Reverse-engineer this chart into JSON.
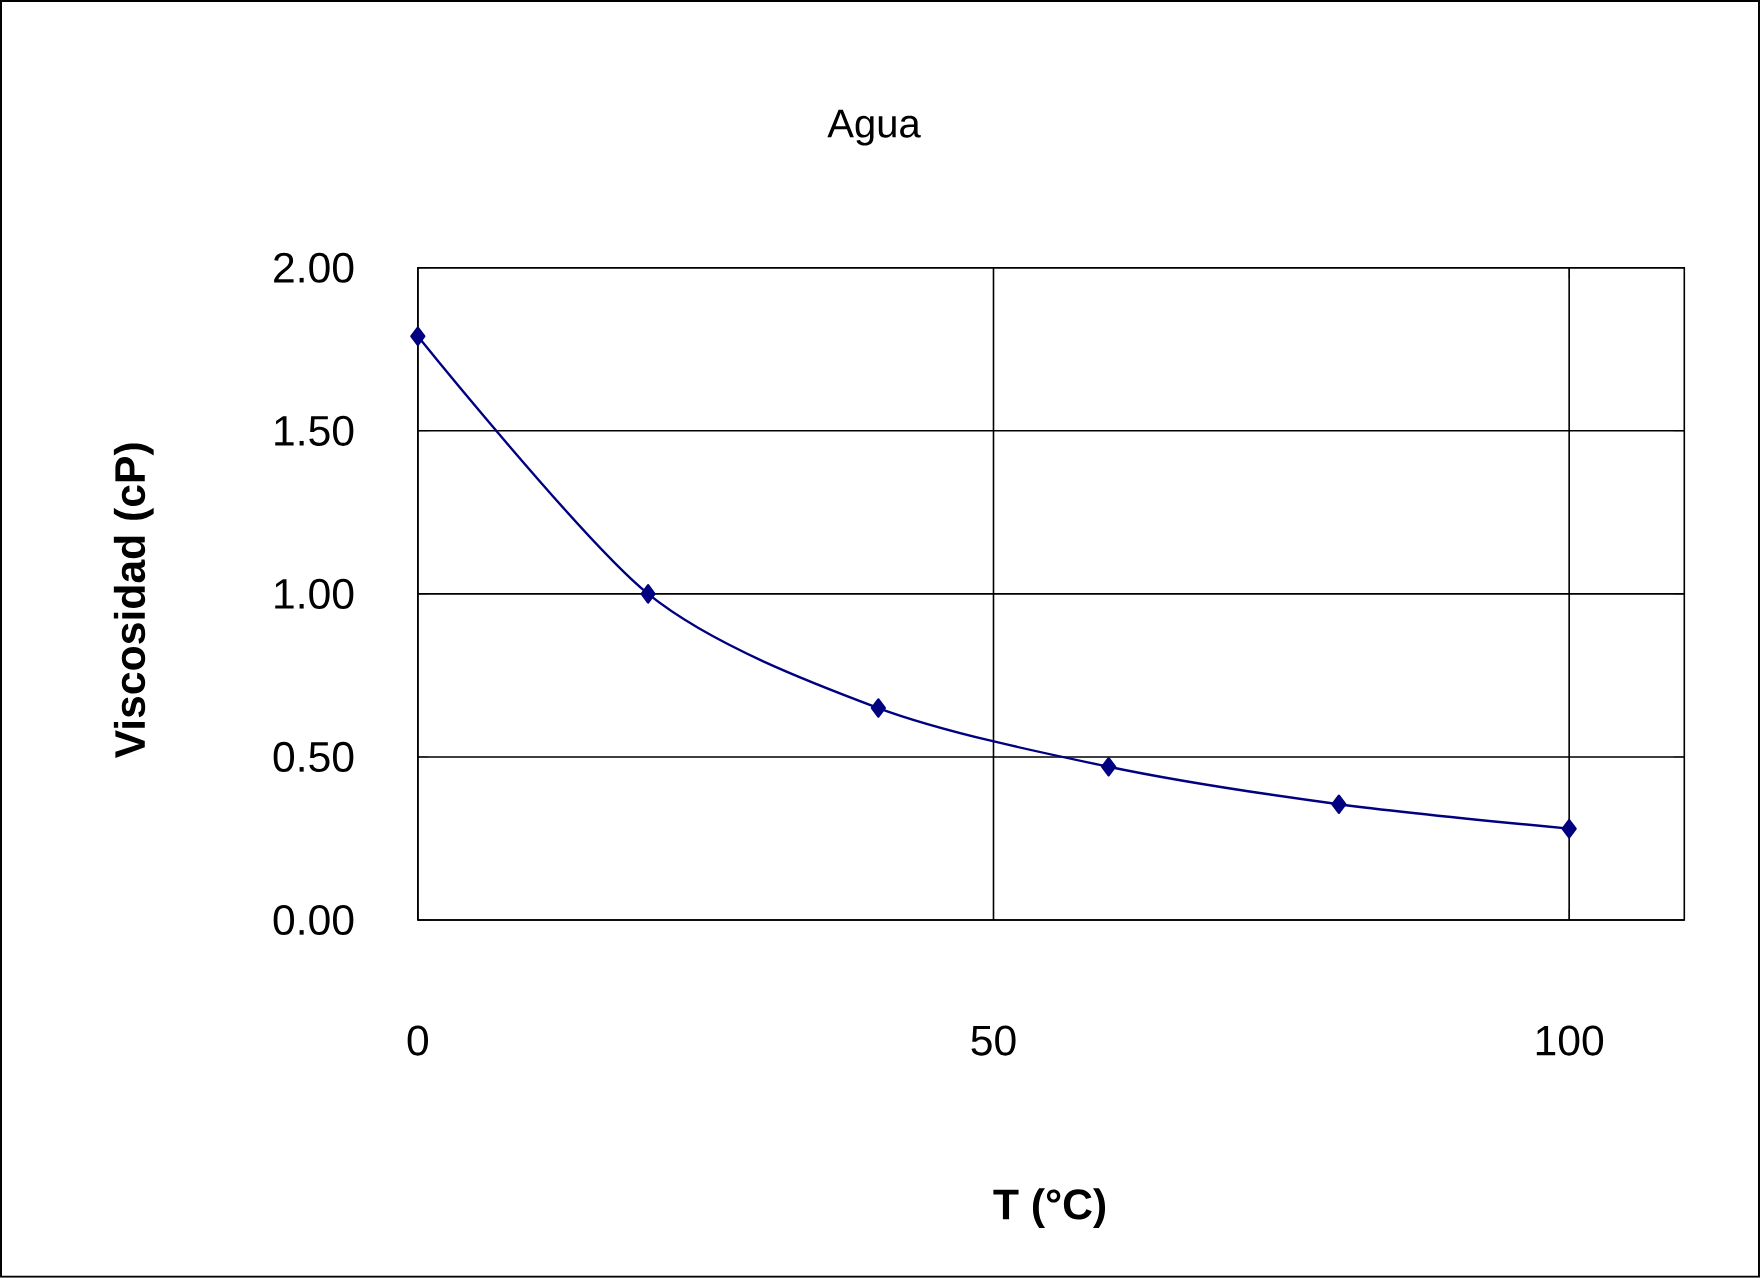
{
  "chart_data": {
    "type": "line",
    "title": "Agua",
    "xlabel": "T (°C)",
    "ylabel": "Viscosidad (cP)",
    "x": [
      0,
      20,
      40,
      60,
      80,
      100
    ],
    "series": [
      {
        "color": "#000080",
        "values": [
          1.79,
          1.0,
          0.65,
          0.47,
          0.355,
          0.28
        ]
      }
    ],
    "xlim": [
      0,
      110
    ],
    "ylim": [
      0,
      2
    ],
    "xticks": [
      0,
      50,
      100
    ],
    "yticks": [
      {
        "value": 0,
        "label": "0.00"
      },
      {
        "value": 0.5,
        "label": "0.50"
      },
      {
        "value": 1,
        "label": "1.00"
      },
      {
        "value": 1.5,
        "label": "1.50"
      },
      {
        "value": 2,
        "label": "2.00"
      }
    ],
    "grid": true,
    "marker": "diamond",
    "line_style": "solid"
  }
}
